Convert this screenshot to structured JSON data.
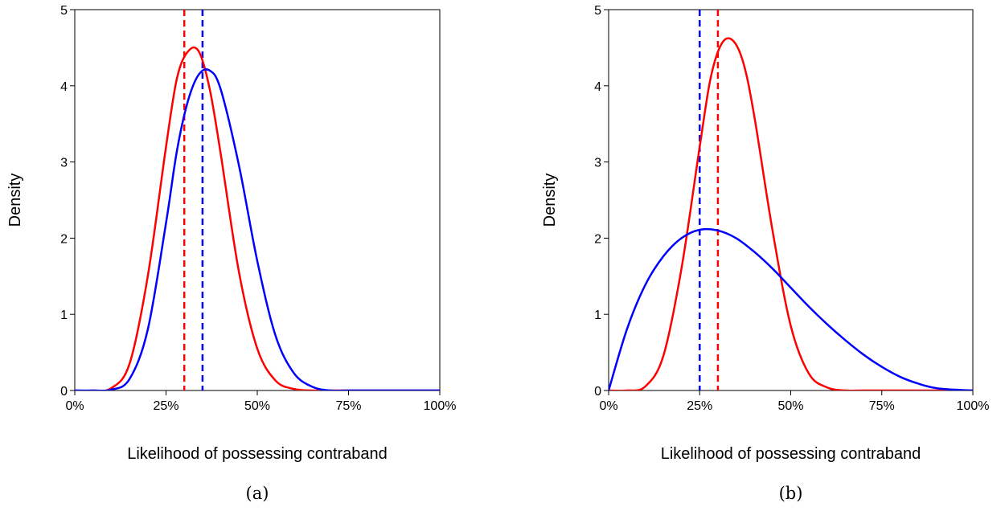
{
  "chart_data": [
    {
      "type": "line",
      "caption": "(a)",
      "xlabel": "Likelihood of possessing contraband",
      "ylabel": "Density",
      "xlim": [
        0,
        1
      ],
      "ylim": [
        0,
        5
      ],
      "xticks": [
        0,
        0.25,
        0.5,
        0.75,
        1
      ],
      "xtick_labels": [
        "0%",
        "25%",
        "50%",
        "75%",
        "100%"
      ],
      "yticks": [
        0,
        1,
        2,
        3,
        4,
        5
      ],
      "ytick_labels": [
        "0",
        "1",
        "2",
        "3",
        "4",
        "5"
      ],
      "grid": false,
      "series": [
        {
          "color": "#ff0000",
          "x": [
            0,
            0.05,
            0.1,
            0.15,
            0.2,
            0.25,
            0.28,
            0.31,
            0.34,
            0.37,
            0.4,
            0.45,
            0.5,
            0.55,
            0.6,
            0.65,
            0.7,
            0.75,
            0.8,
            0.9,
            1.0
          ],
          "y": [
            0,
            0,
            0.03,
            0.35,
            1.5,
            3.2,
            4.1,
            4.45,
            4.45,
            3.95,
            3.1,
            1.55,
            0.55,
            0.13,
            0.02,
            0,
            0,
            0,
            0,
            0,
            0
          ]
        },
        {
          "color": "#0000ff",
          "x": [
            0,
            0.05,
            0.1,
            0.15,
            0.2,
            0.25,
            0.28,
            0.31,
            0.34,
            0.37,
            0.4,
            0.45,
            0.5,
            0.55,
            0.6,
            0.65,
            0.7,
            0.75,
            0.8,
            0.9,
            1.0
          ],
          "y": [
            0,
            0,
            0.01,
            0.15,
            0.8,
            2.2,
            3.15,
            3.8,
            4.15,
            4.2,
            3.95,
            2.95,
            1.7,
            0.72,
            0.23,
            0.05,
            0,
            0,
            0,
            0,
            0
          ]
        }
      ],
      "vlines": [
        {
          "x": 0.3,
          "color": "#ff0000",
          "style": "dashed"
        },
        {
          "x": 0.35,
          "color": "#0000ff",
          "style": "dashed"
        }
      ]
    },
    {
      "type": "line",
      "caption": "(b)",
      "xlabel": "Likelihood of possessing contraband",
      "ylabel": "Density",
      "xlim": [
        0,
        1
      ],
      "ylim": [
        0,
        5
      ],
      "xticks": [
        0,
        0.25,
        0.5,
        0.75,
        1
      ],
      "xtick_labels": [
        "0%",
        "25%",
        "50%",
        "75%",
        "100%"
      ],
      "yticks": [
        0,
        1,
        2,
        3,
        4,
        5
      ],
      "ytick_labels": [
        "0",
        "1",
        "2",
        "3",
        "4",
        "5"
      ],
      "grid": false,
      "series": [
        {
          "color": "#ff0000",
          "x": [
            0,
            0.05,
            0.1,
            0.15,
            0.2,
            0.25,
            0.28,
            0.31,
            0.34,
            0.37,
            0.4,
            0.45,
            0.5,
            0.55,
            0.6,
            0.65,
            0.7,
            0.8,
            0.9,
            1.0
          ],
          "y": [
            0,
            0,
            0.05,
            0.45,
            1.6,
            3.2,
            4.1,
            4.55,
            4.6,
            4.3,
            3.6,
            2.1,
            0.85,
            0.22,
            0.04,
            0,
            0,
            0,
            0,
            0
          ]
        },
        {
          "color": "#0000ff",
          "x": [
            0,
            0.05,
            0.1,
            0.15,
            0.2,
            0.25,
            0.3,
            0.35,
            0.4,
            0.45,
            0.5,
            0.55,
            0.6,
            0.65,
            0.7,
            0.75,
            0.8,
            0.85,
            0.9,
            0.95,
            1.0
          ],
          "y": [
            0,
            0.8,
            1.38,
            1.76,
            2.0,
            2.11,
            2.1,
            2.0,
            1.82,
            1.6,
            1.35,
            1.1,
            0.87,
            0.66,
            0.47,
            0.31,
            0.18,
            0.09,
            0.03,
            0.01,
            0
          ]
        }
      ],
      "vlines": [
        {
          "x": 0.25,
          "color": "#0000ff",
          "style": "dashed"
        },
        {
          "x": 0.3,
          "color": "#ff0000",
          "style": "dashed"
        }
      ]
    }
  ]
}
